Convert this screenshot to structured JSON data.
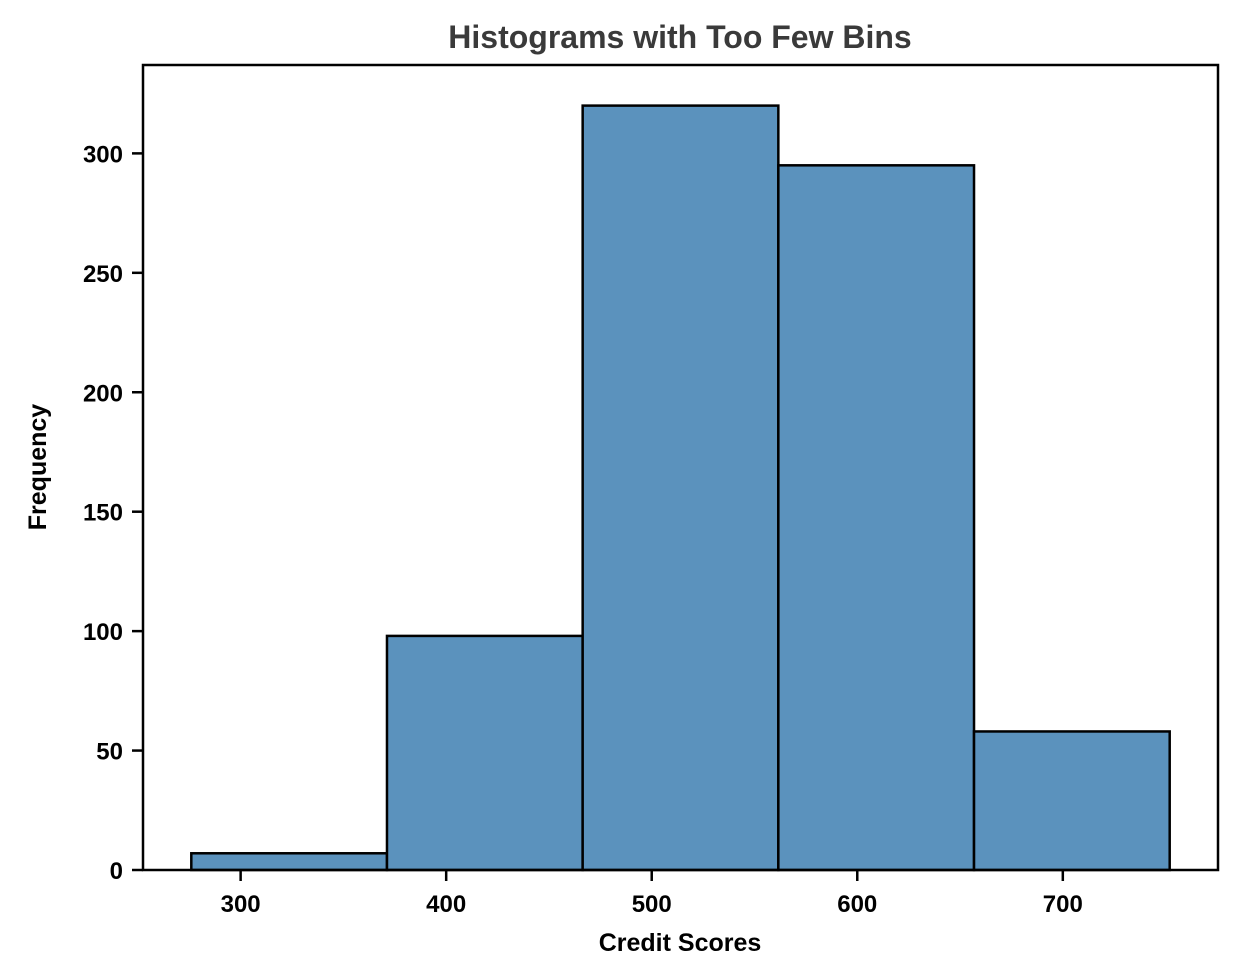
{
  "chart_data": {
    "type": "bar",
    "subtype": "histogram",
    "title": "Histograms with Too Few Bins",
    "xlabel": "Credit Scores",
    "ylabel": "Frequency",
    "bin_edges": [
      276,
      371.2,
      466.4,
      561.6,
      656.8,
      752
    ],
    "counts": [
      7,
      98,
      320,
      295,
      58
    ],
    "xticks": [
      300,
      400,
      500,
      600,
      700
    ],
    "yticks": [
      0,
      50,
      100,
      150,
      200,
      250,
      300
    ],
    "xlim": [
      252.5,
      775.5
    ],
    "ylim": [
      0,
      337
    ],
    "grid": false,
    "legend_position": "none",
    "bar_color": "#5b92bd",
    "bar_edge_color": "#000000",
    "axis_color": "#000000",
    "title_color": "#3a3a3a",
    "label_color": "#000000"
  }
}
